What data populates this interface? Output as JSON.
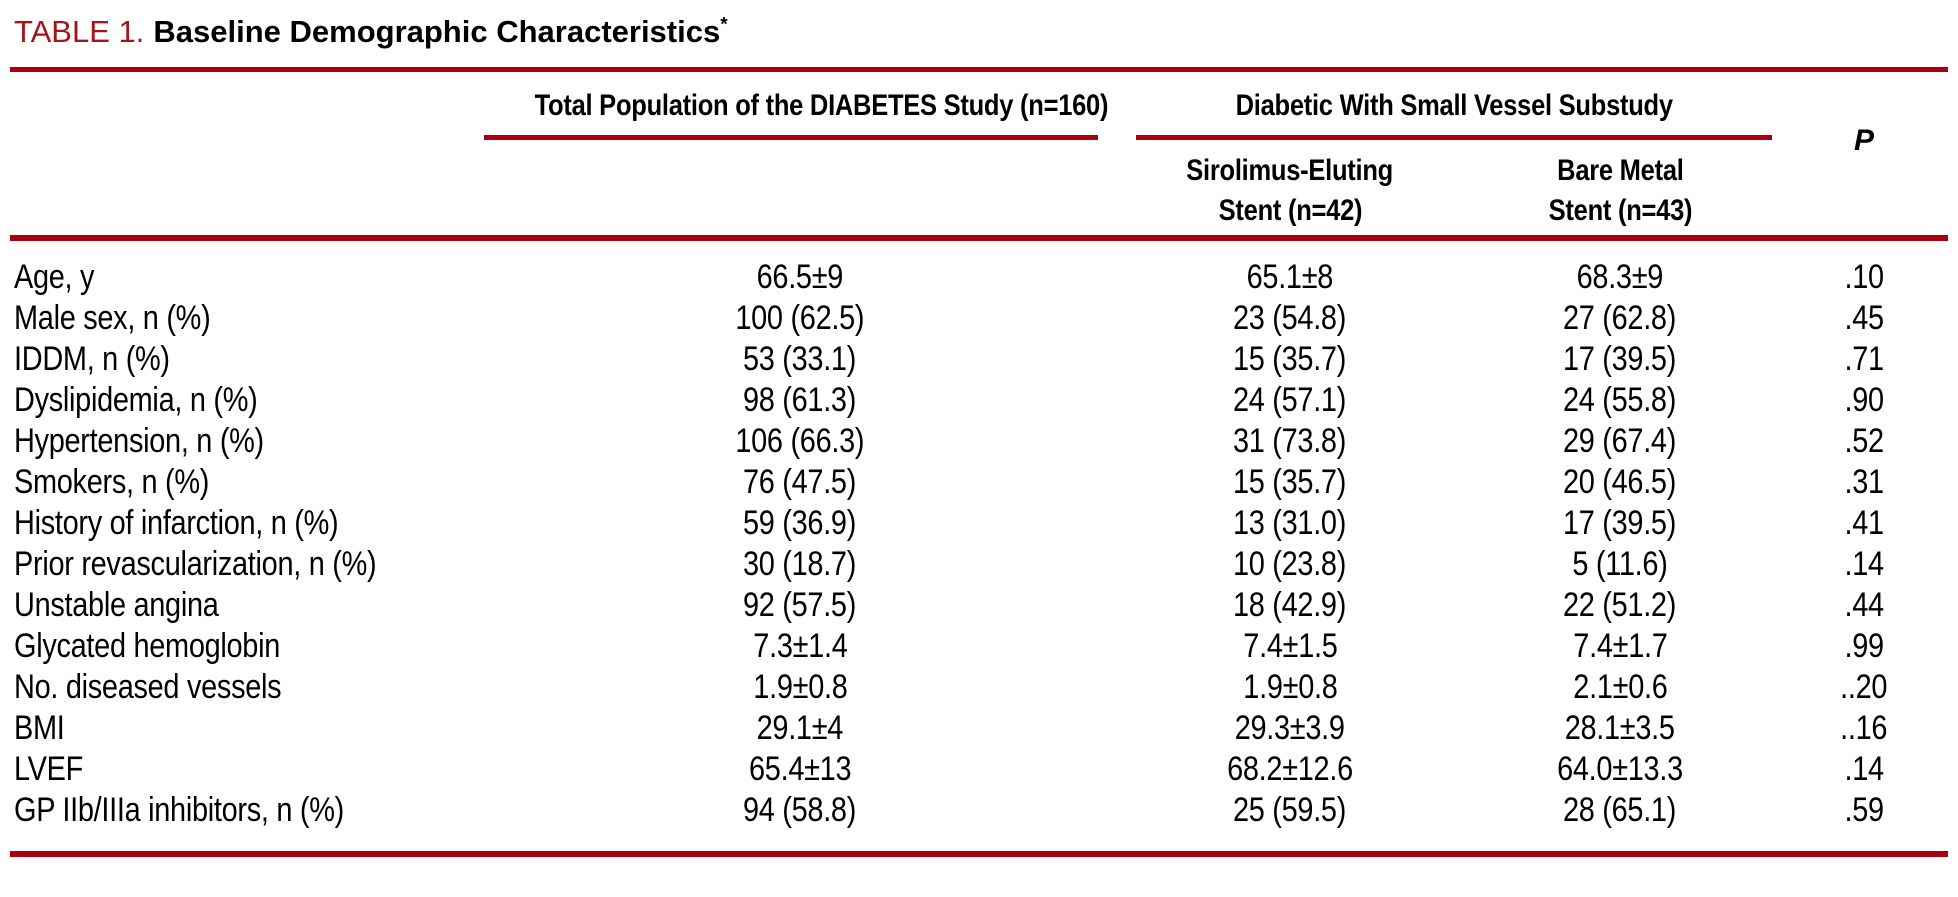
{
  "title": {
    "label": "TABLE 1.",
    "text": "Baseline Demographic Characteristics",
    "footnote_marker": "*"
  },
  "colors": {
    "rule_red": "#a80010",
    "title_red": "#a4141b",
    "text_black": "#000000"
  },
  "table": {
    "group_headers": {
      "total": "Total Population of the DIABETES Study (n=160)",
      "substudy": "Diabetic With Small Vessel Substudy"
    },
    "sub_headers": {
      "sirolimus_line1": "Sirolimus-Eluting",
      "sirolimus_line2": "Stent (n=42)",
      "bare_line1": "Bare Metal",
      "bare_line2": "Stent (n=43)"
    },
    "p_header": "P",
    "rows": [
      {
        "label": "Age, y",
        "total": "66.5±9",
        "sirolimus": "65.1±8",
        "bare_metal": "68.3±9",
        "p": ".10"
      },
      {
        "label": "Male sex, n (%)",
        "total": "100 (62.5)",
        "sirolimus": "23 (54.8)",
        "bare_metal": "27 (62.8)",
        "p": ".45"
      },
      {
        "label": "IDDM, n (%)",
        "total": "53 (33.1)",
        "sirolimus": "15 (35.7)",
        "bare_metal": "17 (39.5)",
        "p": ".71"
      },
      {
        "label": "Dyslipidemia, n (%)",
        "total": "98 (61.3)",
        "sirolimus": "24 (57.1)",
        "bare_metal": "24 (55.8)",
        "p": ".90"
      },
      {
        "label": "Hypertension, n (%)",
        "total": "106 (66.3)",
        "sirolimus": "31 (73.8)",
        "bare_metal": "29 (67.4)",
        "p": ".52"
      },
      {
        "label": "Smokers, n (%)",
        "total": "76 (47.5)",
        "sirolimus": "15 (35.7)",
        "bare_metal": "20 (46.5)",
        "p": ".31"
      },
      {
        "label": "History of infarction, n (%)",
        "total": "59 (36.9)",
        "sirolimus": "13 (31.0)",
        "bare_metal": "17 (39.5)",
        "p": ".41"
      },
      {
        "label": "Prior revascularization, n (%)",
        "total": "30 (18.7)",
        "sirolimus": "10 (23.8)",
        "bare_metal": "5 (11.6)",
        "p": ".14"
      },
      {
        "label": "Unstable angina",
        "total": "92 (57.5)",
        "sirolimus": "18 (42.9)",
        "bare_metal": "22 (51.2)",
        "p": ".44"
      },
      {
        "label": "Glycated hemoglobin",
        "total": "7.3±1.4",
        "sirolimus": "7.4±1.5",
        "bare_metal": "7.4±1.7",
        "p": ".99"
      },
      {
        "label": "No. diseased vessels",
        "total": "1.9±0.8",
        "sirolimus": "1.9±0.8",
        "bare_metal": "2.1±0.6",
        "p": "..20"
      },
      {
        "label": "BMI",
        "total": "29.1±4",
        "sirolimus": "29.3±3.9",
        "bare_metal": "28.1±3.5",
        "p": "..16"
      },
      {
        "label": "LVEF",
        "total": "65.4±13",
        "sirolimus": "68.2±12.6",
        "bare_metal": "64.0±13.3",
        "p": ".14"
      },
      {
        "label": "GP IIb/IIIa inhibitors, n (%)",
        "total": "94 (58.8)",
        "sirolimus": "25 (59.5)",
        "bare_metal": "28 (65.1)",
        "p": ".59"
      }
    ]
  }
}
